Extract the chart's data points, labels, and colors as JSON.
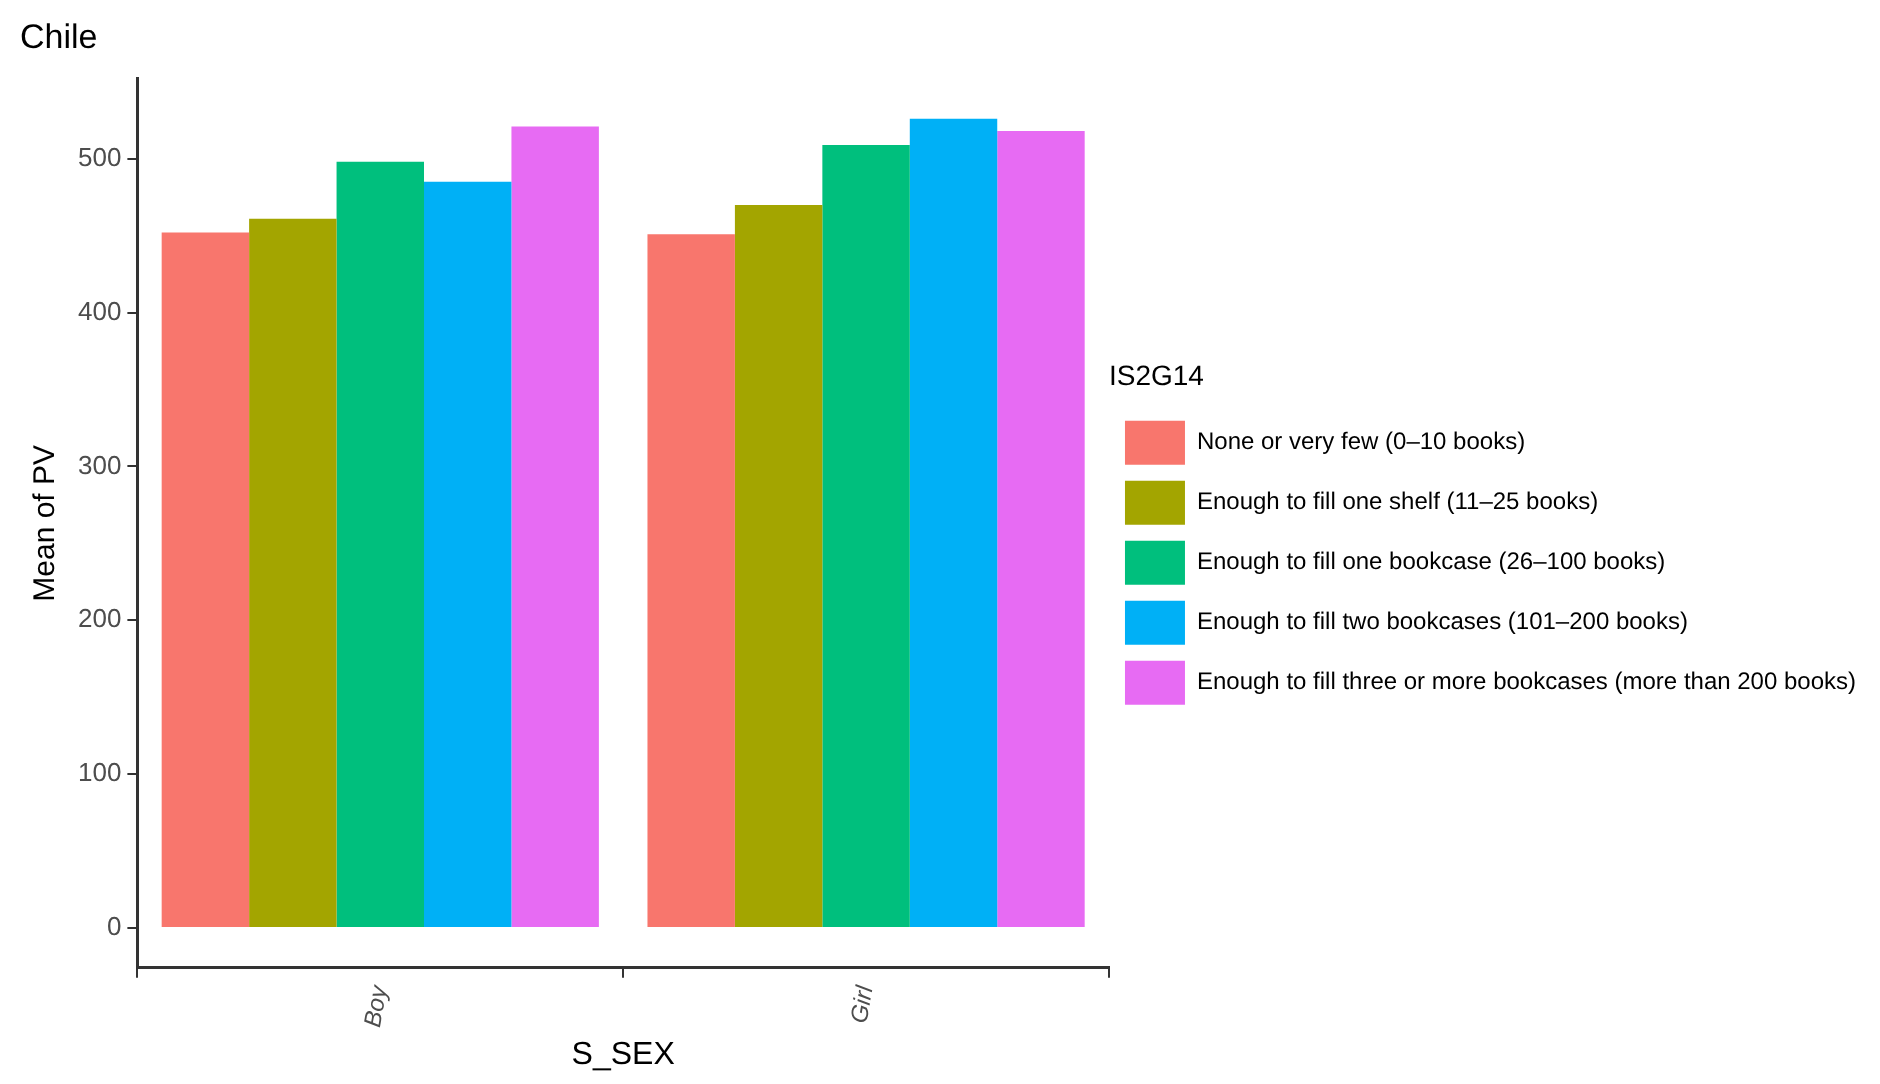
{
  "chart_data": {
    "type": "bar",
    "title": "Chile",
    "xlabel": "S_SEX",
    "ylabel": "Mean of PV",
    "legend_title": "IS2G14",
    "categories": [
      "Boy",
      "Girl"
    ],
    "series": [
      {
        "name": "None or very few (0–10 books)",
        "color": "#f8766d",
        "values": [
          452,
          451
        ]
      },
      {
        "name": "Enough to fill one shelf (11–25 books)",
        "color": "#a3a500",
        "values": [
          461,
          470
        ]
      },
      {
        "name": "Enough to fill one bookcase (26–100 books)",
        "color": "#00bf7d",
        "values": [
          498,
          509
        ]
      },
      {
        "name": "Enough to fill two bookcases (101–200 books)",
        "color": "#00b0f6",
        "values": [
          485,
          526
        ]
      },
      {
        "name": "Enough to fill three or more bookcases (more than 200 books)",
        "color": "#e76bf3",
        "values": [
          521,
          518
        ]
      }
    ],
    "ylim": [
      -26,
      552
    ],
    "yticks": [
      0,
      100,
      200,
      300,
      400,
      500
    ],
    "grid": false,
    "legend": "right"
  }
}
